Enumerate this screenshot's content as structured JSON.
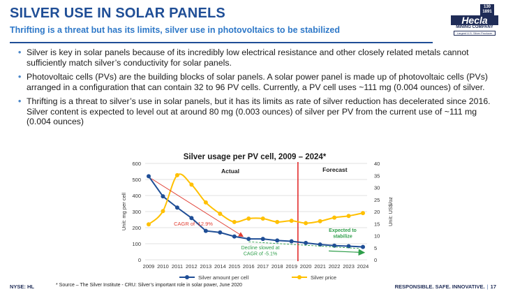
{
  "header": {
    "title": "SILVER USE IN SOLAR PANELS",
    "subtitle": "Thrifting is a threat but has its limits, silver use in photovoltaics to be stabilized"
  },
  "logo": {
    "badge": "130 1891",
    "name": "Hecla",
    "company": "MINING COMPANY",
    "tagline": "Largest U.S. Silver Producer"
  },
  "bullets": [
    "Silver is key in solar panels because of its incredibly low electrical resistance and other closely related metals cannot sufficiently match silver’s conductivity for solar panels.",
    "Photovoltaic cells (PVs) are the building blocks of solar panels. A solar power panel is made up of photovoltaic cells (PVs) arranged in a configuration that can contain 32 to 96 PV cells. Currently, a PV cell uses ~111 mg (0.004 ounces) of silver.",
    "Thrifting is a threat to silver’s use in solar panels, but it has its limits as rate of silver reduction has decelerated since 2016. Silver content is expected to level out at around 80 mg (0.003 ounces) of silver per PV from the current use of ~111 mg (0.004 ounces)"
  ],
  "chart_data": {
    "type": "line",
    "title": "Silver usage per PV cell, 2009 – 2024*",
    "x": [
      "2009",
      "2010",
      "2011",
      "2012",
      "2013",
      "2014",
      "2015",
      "2016",
      "2017",
      "2018",
      "2019",
      "2020",
      "2021",
      "2022",
      "2023",
      "2024"
    ],
    "ylabel_left": "Unit: mg per cell",
    "ylabel_right": "Unit: US$/oz",
    "ylim_left": [
      0,
      600
    ],
    "yticks_left": [
      "0",
      "100",
      "200",
      "300",
      "400",
      "500",
      "600"
    ],
    "ylim_right": [
      0,
      40
    ],
    "yticks_right": [
      "0",
      "5",
      "10",
      "15",
      "20",
      "25",
      "30",
      "35",
      "40"
    ],
    "series": [
      {
        "name": "Silver amount per cell",
        "axis": "left",
        "color": "#1f4e96",
        "values": [
          520,
          395,
          325,
          260,
          180,
          170,
          145,
          130,
          130,
          120,
          115,
          105,
          95,
          88,
          85,
          80
        ]
      },
      {
        "name": "Silver price",
        "axis": "right",
        "color": "#ffc000",
        "values": [
          14.7,
          20.2,
          35.1,
          31.2,
          23.8,
          19.1,
          15.7,
          17.1,
          17.1,
          15.7,
          16.2,
          15.2,
          16.0,
          17.5,
          18.2,
          19.4
        ]
      }
    ],
    "divider_after": "2019",
    "region_labels": [
      "Actual",
      "Forecast"
    ],
    "annotations": [
      {
        "text": "CAGR of -12.9%",
        "color": "#e03c31"
      },
      {
        "text": "Decline slowed at CAGR of -5.1%",
        "color": "#2e9e4a"
      },
      {
        "text": "Expected to stabilize",
        "color": "#2e9e4a"
      }
    ],
    "grid": "horizontal",
    "legend_position": "bottom"
  },
  "footer": {
    "ticker": "NYSE: HL",
    "source": "* Source – The Silver Institute - CRU: Silver’s important role in solar power, June 2020",
    "tagline": "RESPONSIBLE. SAFE. INNOVATIVE.",
    "page": "17"
  }
}
